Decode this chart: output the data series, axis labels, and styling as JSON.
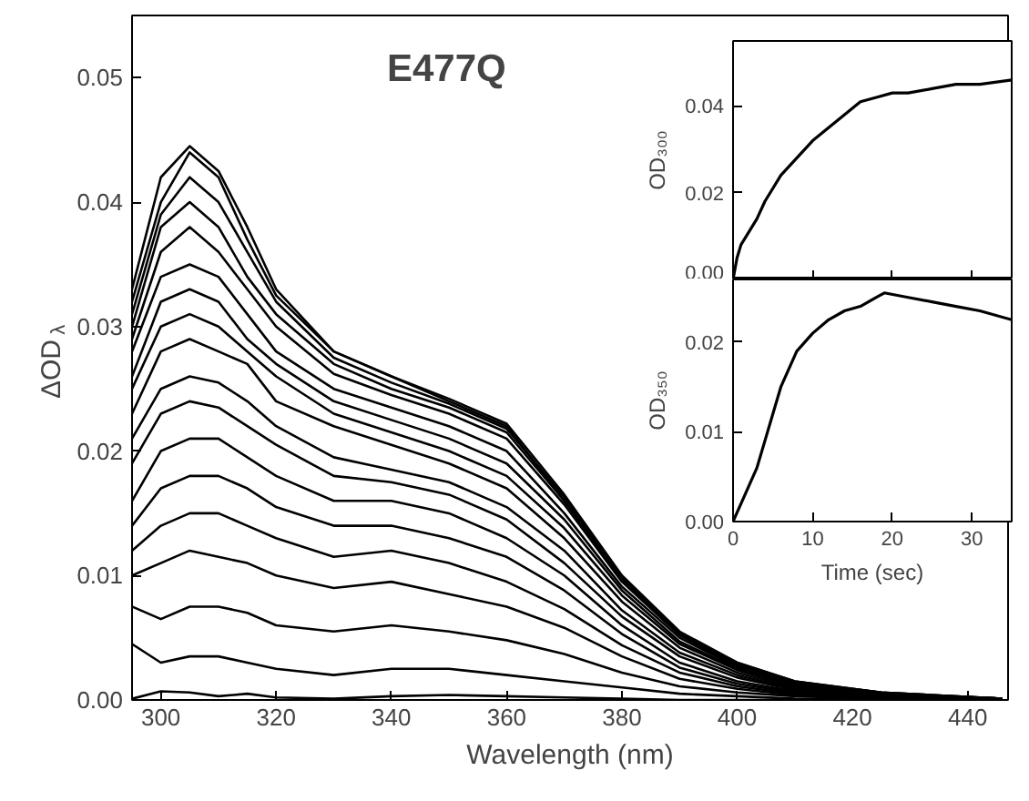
{
  "chart_data": [
    {
      "type": "line",
      "xlabel": "Wavelength (nm)",
      "ylabel": "ΔOD$_{λ}$",
      "annotations": [
        "E477Q"
      ],
      "grid": false,
      "marker": "none",
      "line_style": "solid",
      "x": [
        295,
        300,
        305,
        310,
        315,
        320,
        330,
        340,
        350,
        360,
        370,
        380,
        390,
        400,
        410,
        425,
        446
      ],
      "xlim": [
        295,
        447
      ],
      "xticks": [
        300,
        320,
        340,
        360,
        380,
        400,
        420,
        440
      ],
      "ylim": [
        0,
        0.055
      ],
      "yticks": [
        {
          "value": 0,
          "label": "0.00"
        },
        {
          "value": 0.01,
          "label": "0.01"
        },
        {
          "value": 0.02,
          "label": "0.02"
        },
        {
          "value": 0.03,
          "label": "0.03"
        },
        {
          "value": 0.04,
          "label": "0.04"
        },
        {
          "value": 0.05,
          "label": "0.05"
        }
      ],
      "series": [
        {
          "color": "#000000",
          "values": [
            0.033,
            0.042,
            0.0445,
            0.0425,
            0.038,
            0.033,
            0.028,
            0.026,
            0.024,
            0.022,
            0.016,
            0.0098,
            0.0053,
            0.003,
            0.0015,
            0.0006,
            0.0001
          ]
        },
        {
          "color": "#000000",
          "values": [
            0.032,
            0.04,
            0.044,
            0.042,
            0.037,
            0.0325,
            0.028,
            0.026,
            0.0242,
            0.0222,
            0.0165,
            0.01,
            0.0055,
            0.003,
            0.0015,
            0.0006,
            0.0001
          ]
        },
        {
          "color": "#000000",
          "values": [
            0.031,
            0.039,
            0.042,
            0.04,
            0.036,
            0.032,
            0.0275,
            0.0255,
            0.0238,
            0.0218,
            0.0163,
            0.0099,
            0.0054,
            0.0029,
            0.0014,
            0.0006,
            0.0001
          ]
        },
        {
          "color": "#000000",
          "values": [
            0.03,
            0.038,
            0.04,
            0.038,
            0.034,
            0.031,
            0.027,
            0.025,
            0.0235,
            0.0215,
            0.016,
            0.0097,
            0.0053,
            0.0028,
            0.0014,
            0.0005,
            0.0001
          ]
        },
        {
          "color": "#000000",
          "values": [
            0.029,
            0.036,
            0.038,
            0.036,
            0.033,
            0.03,
            0.0262,
            0.0245,
            0.023,
            0.021,
            0.0157,
            0.0095,
            0.0052,
            0.0027,
            0.0013,
            0.0005,
            0.0001
          ]
        },
        {
          "color": "#000000",
          "values": [
            0.028,
            0.034,
            0.035,
            0.034,
            0.031,
            0.028,
            0.025,
            0.0235,
            0.022,
            0.02,
            0.015,
            0.0091,
            0.005,
            0.0026,
            0.0012,
            0.0005,
            0.0001
          ]
        },
        {
          "color": "#000000",
          "values": [
            0.026,
            0.032,
            0.033,
            0.032,
            0.029,
            0.027,
            0.024,
            0.0225,
            0.021,
            0.019,
            0.0145,
            0.0088,
            0.0047,
            0.0025,
            0.0012,
            0.0005,
            0.0001
          ]
        },
        {
          "color": "#000000",
          "values": [
            0.025,
            0.03,
            0.031,
            0.03,
            0.028,
            0.026,
            0.023,
            0.0215,
            0.02,
            0.018,
            0.0138,
            0.0084,
            0.0045,
            0.0024,
            0.0011,
            0.0004,
            0.0001
          ]
        },
        {
          "color": "#000000",
          "values": [
            0.023,
            0.028,
            0.029,
            0.028,
            0.027,
            0.024,
            0.022,
            0.0205,
            0.019,
            0.017,
            0.013,
            0.0079,
            0.0042,
            0.0022,
            0.001,
            0.0004,
            0
          ]
        },
        {
          "color": "#000000",
          "values": [
            0.021,
            0.025,
            0.026,
            0.0255,
            0.024,
            0.022,
            0.0195,
            0.0185,
            0.0175,
            0.0155,
            0.012,
            0.0072,
            0.0038,
            0.002,
            0.0009,
            0.0003,
            0
          ]
        },
        {
          "color": "#000000",
          "values": [
            0.019,
            0.023,
            0.024,
            0.0235,
            0.022,
            0.0205,
            0.018,
            0.0175,
            0.0165,
            0.0145,
            0.011,
            0.0067,
            0.0035,
            0.0018,
            0.0008,
            0.0003,
            0
          ]
        },
        {
          "color": "#000000",
          "values": [
            0.016,
            0.02,
            0.021,
            0.021,
            0.0195,
            0.018,
            0.016,
            0.016,
            0.015,
            0.013,
            0.01,
            0.006,
            0.003,
            0.0015,
            0.0007,
            0.0002,
            0
          ]
        },
        {
          "color": "#000000",
          "values": [
            0.014,
            0.017,
            0.018,
            0.018,
            0.017,
            0.0155,
            0.014,
            0.014,
            0.013,
            0.0115,
            0.0088,
            0.0053,
            0.0026,
            0.0013,
            0.0006,
            0.0002,
            0
          ]
        },
        {
          "color": "#000000",
          "values": [
            0.012,
            0.014,
            0.015,
            0.015,
            0.014,
            0.013,
            0.0115,
            0.012,
            0.011,
            0.0095,
            0.0073,
            0.0044,
            0.0022,
            0.0011,
            0.0005,
            0.0002,
            0
          ]
        },
        {
          "color": "#000000",
          "values": [
            0.01,
            0.011,
            0.012,
            0.0115,
            0.011,
            0.01,
            0.009,
            0.0095,
            0.0085,
            0.0075,
            0.0058,
            0.0035,
            0.0017,
            0.0009,
            0.0004,
            0.0001,
            0
          ]
        },
        {
          "color": "#000000",
          "values": [
            0.0075,
            0.0065,
            0.0075,
            0.0075,
            0.007,
            0.006,
            0.0055,
            0.006,
            0.0055,
            0.0048,
            0.0037,
            0.0022,
            0.0011,
            0.0006,
            0.0003,
            0.0001,
            0
          ]
        },
        {
          "color": "#000000",
          "values": [
            0.0045,
            0.003,
            0.0035,
            0.0035,
            0.003,
            0.0025,
            0.002,
            0.0025,
            0.0025,
            0.002,
            0.0015,
            0.001,
            0.0005,
            0.0003,
            0.0001,
            0,
            0
          ]
        },
        {
          "color": "#000000",
          "values": [
            0.0001,
            0.0007,
            0.0006,
            0.0003,
            0.0005,
            0.0002,
            0.0001,
            0.0003,
            0.0004,
            0.0003,
            0.0002,
            0.0001,
            0,
            0,
            0,
            0,
            0
          ]
        }
      ]
    },
    {
      "type": "line",
      "ylabel": "OD₃₀₀",
      "tick_labels": "y",
      "grid": false,
      "marker": "none",
      "line_style": "solid",
      "xlim": [
        0,
        35
      ],
      "xticks": [
        0,
        10,
        20,
        30
      ],
      "ylim": [
        0,
        0.055
      ],
      "yticks": [
        {
          "value": 0,
          "label": "0.00"
        },
        {
          "value": 0.02,
          "label": "0.02"
        },
        {
          "value": 0.04,
          "label": "0.04"
        }
      ],
      "series": [
        {
          "color": "#000000",
          "x": [
            0,
            0.5,
            1,
            2,
            3,
            4,
            5,
            6,
            8,
            10,
            12,
            14,
            16,
            18,
            20,
            22,
            25,
            28,
            31,
            35
          ],
          "values": [
            0,
            0.005,
            0.008,
            0.011,
            0.014,
            0.018,
            0.021,
            0.024,
            0.028,
            0.032,
            0.035,
            0.038,
            0.041,
            0.042,
            0.043,
            0.043,
            0.044,
            0.045,
            0.045,
            0.046
          ]
        }
      ]
    },
    {
      "type": "line",
      "ylabel": "OD₃₅₀",
      "xlabel": "Time (sec)",
      "grid": false,
      "marker": "none",
      "line_style": "solid",
      "xlim": [
        0,
        35
      ],
      "xticks": [
        0,
        10,
        20,
        30
      ],
      "ylim": [
        0,
        0.027
      ],
      "yticks": [
        {
          "value": 0,
          "label": "0.00"
        },
        {
          "value": 0.01,
          "label": "0.01"
        },
        {
          "value": 0.02,
          "label": "0.02"
        }
      ],
      "series": [
        {
          "color": "#000000",
          "x": [
            0,
            0.5,
            1,
            2,
            3,
            4,
            5,
            6,
            8,
            10,
            12,
            14,
            16,
            18,
            19,
            22,
            25,
            28,
            31,
            35
          ],
          "values": [
            0,
            0.001,
            0.002,
            0.004,
            0.006,
            0.009,
            0.012,
            0.015,
            0.019,
            0.021,
            0.0225,
            0.0235,
            0.024,
            0.025,
            0.0255,
            0.025,
            0.0245,
            0.024,
            0.0235,
            0.0225
          ]
        }
      ]
    }
  ]
}
